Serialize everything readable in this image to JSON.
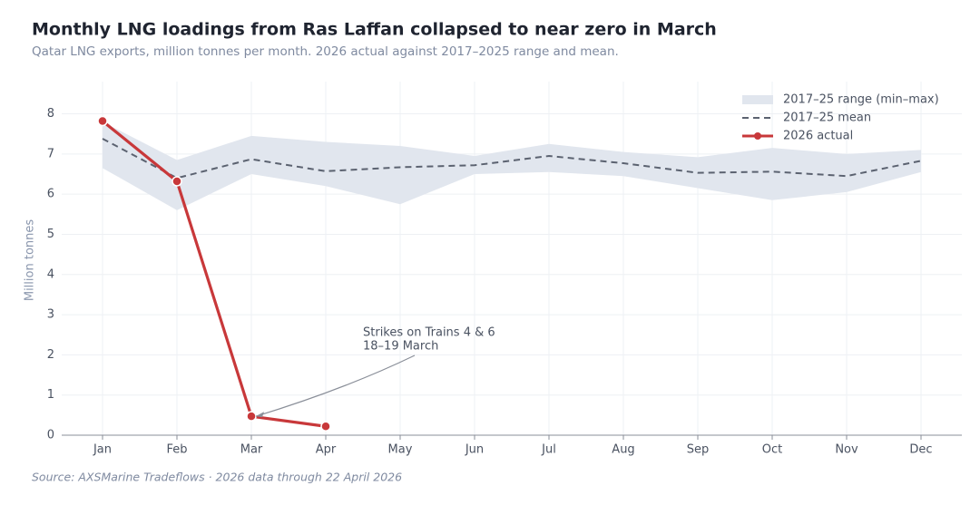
{
  "chart_data": {
    "type": "line",
    "title": "Monthly LNG loadings from Ras Laffan collapsed to near zero in March",
    "subtitle": "Qatar LNG exports, million tonnes per month. 2026 actual against 2017–2025 range and mean.",
    "y_label": "Million tonnes",
    "source": "Source: AXSMarine Tradeflows · 2026 data through 22 April 2026",
    "categories": [
      "Jan",
      "Feb",
      "Mar",
      "Apr",
      "May",
      "Jun",
      "Jul",
      "Aug",
      "Sep",
      "Oct",
      "Nov",
      "Dec"
    ],
    "ylim": [
      0,
      8.35
    ],
    "yticks": [
      0,
      1,
      2,
      3,
      4,
      5,
      6,
      7,
      8
    ],
    "grid": true,
    "legend": "upper right",
    "band": {
      "name": "2017–25 range (min–max)",
      "color": "#e1e6ee",
      "high": [
        7.8,
        6.85,
        7.45,
        7.3,
        7.2,
        6.95,
        7.25,
        7.05,
        6.92,
        7.15,
        7.0,
        7.1
      ],
      "low": [
        6.65,
        5.6,
        6.5,
        6.2,
        5.75,
        6.5,
        6.55,
        6.45,
        6.15,
        5.85,
        6.05,
        6.55
      ]
    },
    "series": [
      {
        "name": "2017–25 mean",
        "color": "#5b6270",
        "dashed": true,
        "values": [
          7.38,
          6.4,
          6.87,
          6.57,
          6.67,
          6.72,
          6.95,
          6.77,
          6.53,
          6.56,
          6.45,
          6.83
        ]
      },
      {
        "name": "2026 actual",
        "color": "#c8383a",
        "dashed": false,
        "markers": true,
        "values": [
          7.82,
          6.32,
          0.47,
          0.22,
          null,
          null,
          null,
          null,
          null,
          null,
          null,
          null
        ]
      }
    ],
    "annotation": {
      "lines": [
        "Strikes on Trains 4 & 6",
        "18–19 March"
      ],
      "category_index": 2,
      "series_index": 1
    }
  }
}
